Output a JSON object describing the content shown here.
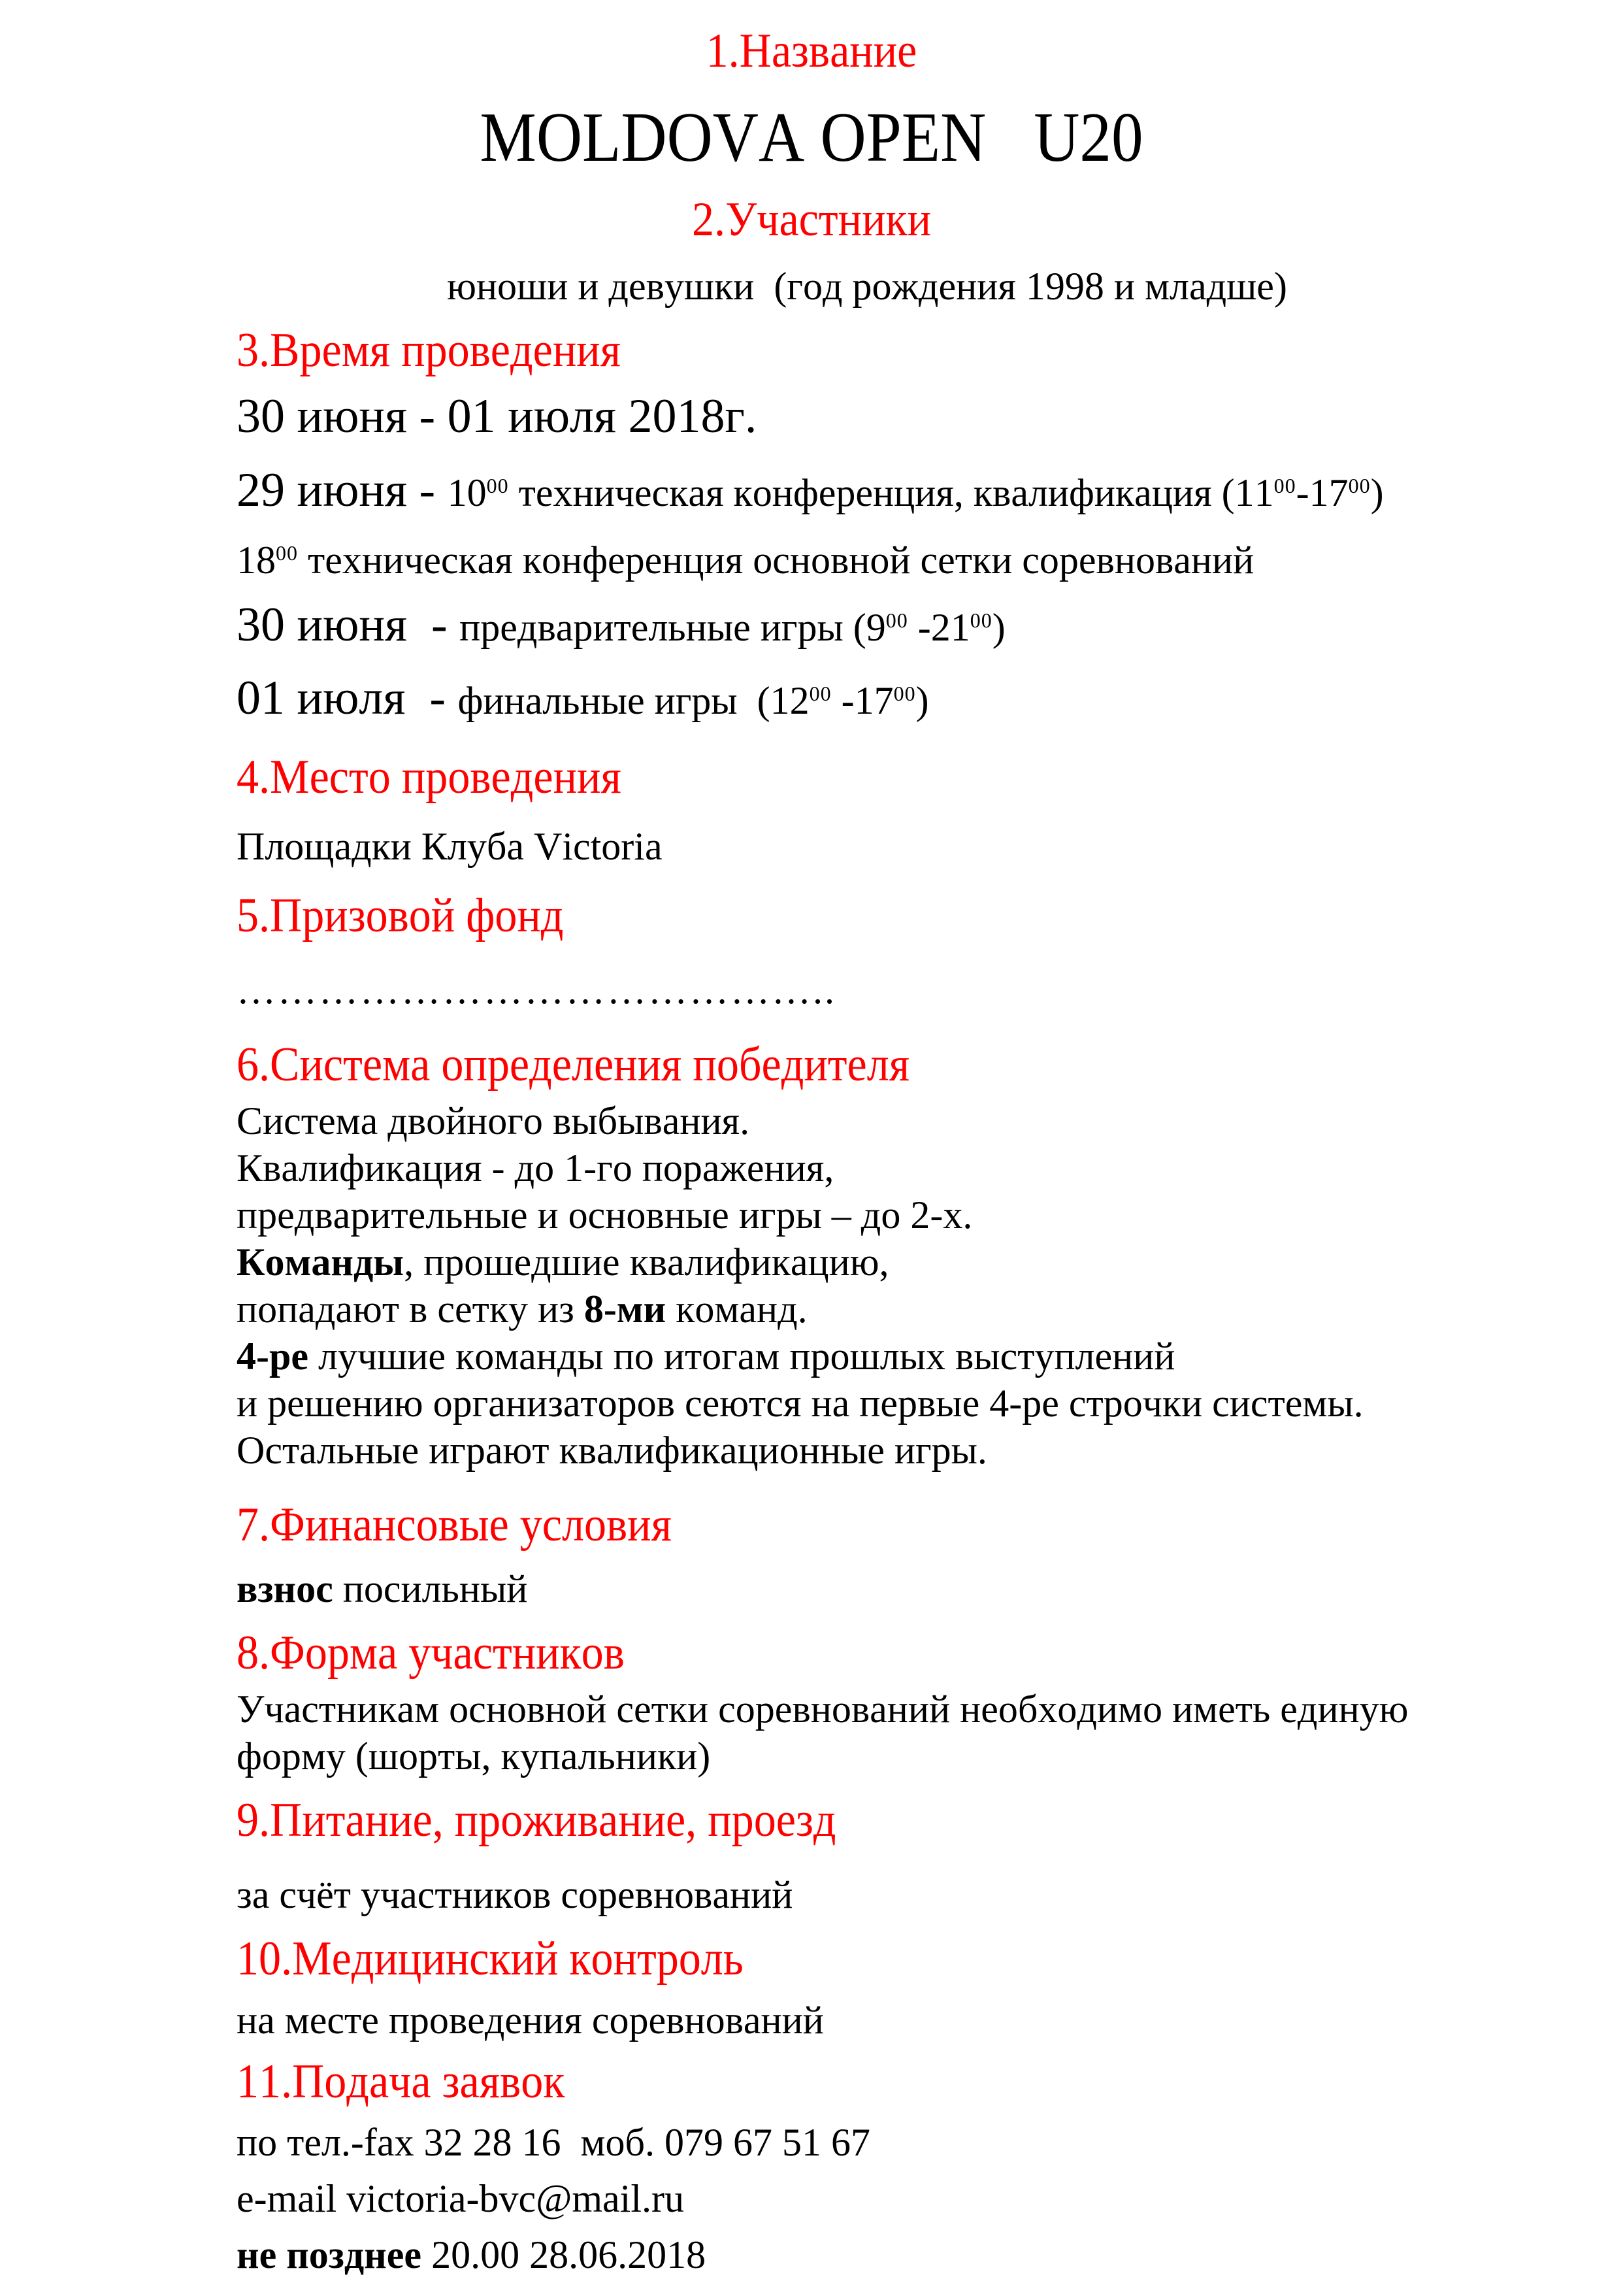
{
  "colors": {
    "accent": "#ff0000",
    "text": "#000000",
    "background": "#ffffff"
  },
  "doc": {
    "heading1": "1.Название",
    "title": "MOLDOVA OPEN   U20",
    "heading2": "2.Участники",
    "participants": "юноши и девушки  (год рождения 1998 и младше)",
    "heading3": "3.Время проведения",
    "schedule": [
      {
        "segments": [
          {
            "t": "30 июня - 01 июля 2018г.",
            "cls": "lg"
          }
        ]
      },
      {
        "segments": [
          {
            "t": "29 июня - ",
            "cls": "lg"
          },
          {
            "t": "10"
          },
          {
            "t": "00",
            "cls": "sup"
          },
          {
            "t": " техническая конференция, квалификация (11"
          },
          {
            "t": "00",
            "cls": "sup"
          },
          {
            "t": "-17"
          },
          {
            "t": "00",
            "cls": "sup"
          },
          {
            "t": ")"
          }
        ]
      },
      {
        "segments": [
          {
            "t": "18"
          },
          {
            "t": "00",
            "cls": "sup"
          },
          {
            "t": " техническая конференция основной сетки соревнований"
          }
        ]
      },
      {
        "segments": [
          {
            "t": "30 июня  - ",
            "cls": "lg"
          },
          {
            "t": "предварительные игры (9"
          },
          {
            "t": "00",
            "cls": "sup"
          },
          {
            "t": " -21"
          },
          {
            "t": "00",
            "cls": "sup"
          },
          {
            "t": ")"
          }
        ]
      },
      {
        "segments": [
          {
            "t": "01 июля  - ",
            "cls": "lg"
          },
          {
            "t": "финальные игры  (12"
          },
          {
            "t": "00",
            "cls": "sup"
          },
          {
            "t": " -17"
          },
          {
            "t": "00",
            "cls": "sup"
          },
          {
            "t": ")"
          }
        ]
      }
    ],
    "heading4": "4.Место проведения",
    "venue": "Площадки Клуба Victoria",
    "heading5": "5.Призовой фонд",
    "prize_placeholder": "……………………………………..",
    "heading6": "6.Система определения победителя",
    "system_lines": [
      {
        "segments": [
          {
            "t": "Система двойного выбывания."
          }
        ]
      },
      {
        "segments": [
          {
            "t": "Квалификация - до 1-го поражения,"
          }
        ]
      },
      {
        "segments": [
          {
            "t": "предварительные и основные игры – до 2-х."
          }
        ]
      },
      {
        "segments": [
          {
            "t": "Команды",
            "cls": "b"
          },
          {
            "t": ", прошедшие квалификацию,"
          }
        ]
      },
      {
        "segments": [
          {
            "t": "попадают в сетку из "
          },
          {
            "t": "8-ми",
            "cls": "b"
          },
          {
            "t": " команд."
          }
        ]
      },
      {
        "segments": [
          {
            "t": "4-ре",
            "cls": "b"
          },
          {
            "t": " лучшие команды по итогам прошлых выступлений"
          }
        ]
      },
      {
        "segments": [
          {
            "t": "и решению организаторов сеются на первые 4-ре строчки системы."
          }
        ]
      },
      {
        "segments": [
          {
            "t": "Остальные играют квалификационные игры."
          }
        ]
      }
    ],
    "heading7": "7.Финансовые условия",
    "fee_line": {
      "segments": [
        {
          "t": "взнос",
          "cls": "b"
        },
        {
          "t": " посильный"
        }
      ]
    },
    "heading8": "8.Форма участников",
    "uniform_lines": [
      "Участникам основной сетки соревнований необходимо иметь единую",
      "форму (шорты, купальники)"
    ],
    "heading9": "9.Питание, проживание, проезд",
    "expenses": "за счёт участников соревнований",
    "heading10": "10.Медицинский контроль",
    "medical": "на месте проведения соревнований",
    "heading11": "11.Подача заявок",
    "apply_lines": [
      {
        "segments": [
          {
            "t": "по тел.-fax 32 28 16  моб. 079 67 51 67"
          }
        ]
      },
      {
        "segments": [
          {
            "t": "e-mail victoria-bvc@mail.ru"
          }
        ]
      },
      {
        "segments": [
          {
            "t": "не позднее",
            "cls": "b"
          },
          {
            "t": " 20.00 28.06.2018"
          }
        ]
      }
    ]
  }
}
